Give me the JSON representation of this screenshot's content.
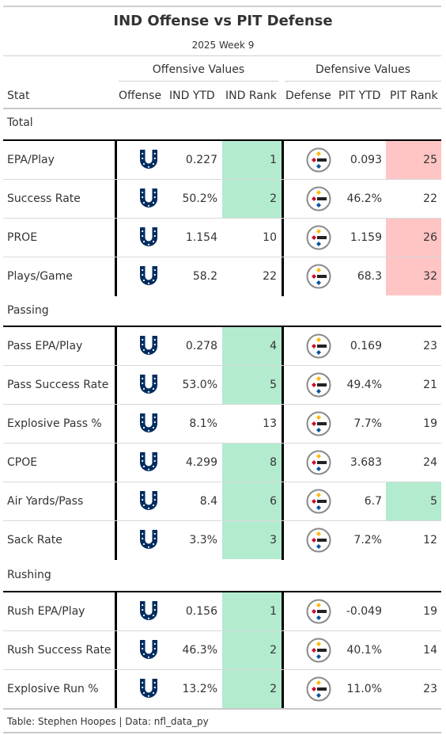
{
  "header": {
    "title": "IND Offense vs PIT Defense",
    "subtitle": "2025 Week 9"
  },
  "spanners": {
    "offense": "Offensive Values",
    "defense": "Defensive Values"
  },
  "columns": {
    "stat": "Stat",
    "offense": "Offense",
    "ind_ytd": "IND YTD",
    "ind_rank": "IND Rank",
    "defense": "Defense",
    "pit_ytd": "PIT YTD",
    "pit_rank": "PIT Rank"
  },
  "colors": {
    "good": "#b3ebcf",
    "bad": "#ffc4c4",
    "colts_blue": "#002c5f",
    "steelers_gold": "#ffb612"
  },
  "icons": {
    "offense": "colts-horseshoe-logo",
    "defense": "steelers-logo"
  },
  "footer": "Table: Stephen Hoopes | Data: nfl_data_py",
  "chart_data": {
    "type": "table",
    "groups": [
      {
        "name": "Total",
        "rows": [
          {
            "stat": "EPA/Play",
            "ind_ytd": "0.227",
            "ind_rank": 1,
            "pit_ytd": "0.093",
            "pit_rank": 25
          },
          {
            "stat": "Success Rate",
            "ind_ytd": "50.2%",
            "ind_rank": 2,
            "pit_ytd": "46.2%",
            "pit_rank": 22
          },
          {
            "stat": "PROE",
            "ind_ytd": "1.154",
            "ind_rank": 10,
            "pit_ytd": "1.159",
            "pit_rank": 26
          },
          {
            "stat": "Plays/Game",
            "ind_ytd": "58.2",
            "ind_rank": 22,
            "pit_ytd": "68.3",
            "pit_rank": 32
          }
        ]
      },
      {
        "name": "Passing",
        "rows": [
          {
            "stat": "Pass EPA/Play",
            "ind_ytd": "0.278",
            "ind_rank": 4,
            "pit_ytd": "0.169",
            "pit_rank": 23
          },
          {
            "stat": "Pass Success Rate",
            "ind_ytd": "53.0%",
            "ind_rank": 5,
            "pit_ytd": "49.4%",
            "pit_rank": 21
          },
          {
            "stat": "Explosive Pass %",
            "ind_ytd": "8.1%",
            "ind_rank": 13,
            "pit_ytd": "7.7%",
            "pit_rank": 19
          },
          {
            "stat": "CPOE",
            "ind_ytd": "4.299",
            "ind_rank": 8,
            "pit_ytd": "3.683",
            "pit_rank": 24
          },
          {
            "stat": "Air Yards/Pass",
            "ind_ytd": "8.4",
            "ind_rank": 6,
            "pit_ytd": "6.7",
            "pit_rank": 5
          },
          {
            "stat": "Sack Rate",
            "ind_ytd": "3.3%",
            "ind_rank": 3,
            "pit_ytd": "7.2%",
            "pit_rank": 12
          }
        ]
      },
      {
        "name": "Rushing",
        "rows": [
          {
            "stat": "Rush EPA/Play",
            "ind_ytd": "0.156",
            "ind_rank": 1,
            "pit_ytd": "-0.049",
            "pit_rank": 19
          },
          {
            "stat": "Rush Success Rate",
            "ind_ytd": "46.3%",
            "ind_rank": 2,
            "pit_ytd": "40.1%",
            "pit_rank": 14
          },
          {
            "stat": "Explosive Run %",
            "ind_ytd": "13.2%",
            "ind_rank": 2,
            "pit_ytd": "11.0%",
            "pit_rank": 23
          }
        ]
      }
    ]
  }
}
